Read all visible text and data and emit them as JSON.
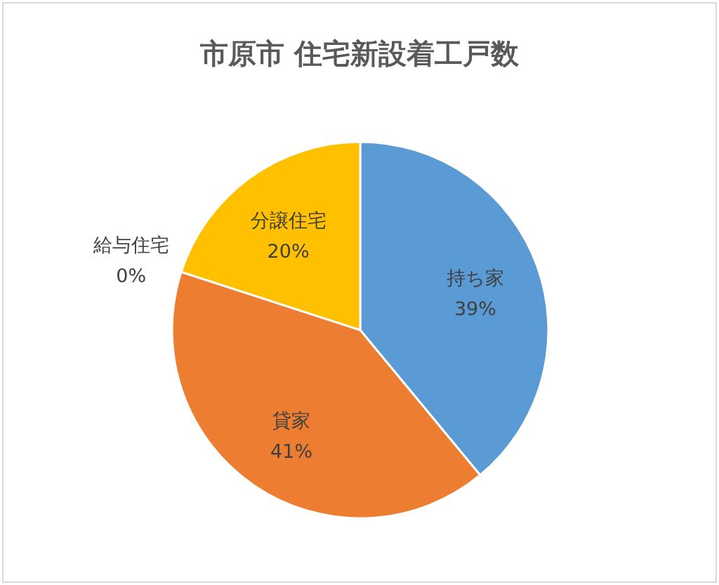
{
  "chart_data": {
    "type": "pie",
    "title": "市原市 住宅新設着工戸数",
    "categories": [
      "持ち家",
      "貸家",
      "給与住宅",
      "分譲住宅"
    ],
    "values": [
      39,
      41,
      0,
      20
    ],
    "value_labels": [
      "39%",
      "41%",
      "0%",
      "20%"
    ],
    "colors": [
      "#5b9bd5",
      "#ed7d31",
      "#a5a5a5",
      "#ffc000"
    ]
  }
}
